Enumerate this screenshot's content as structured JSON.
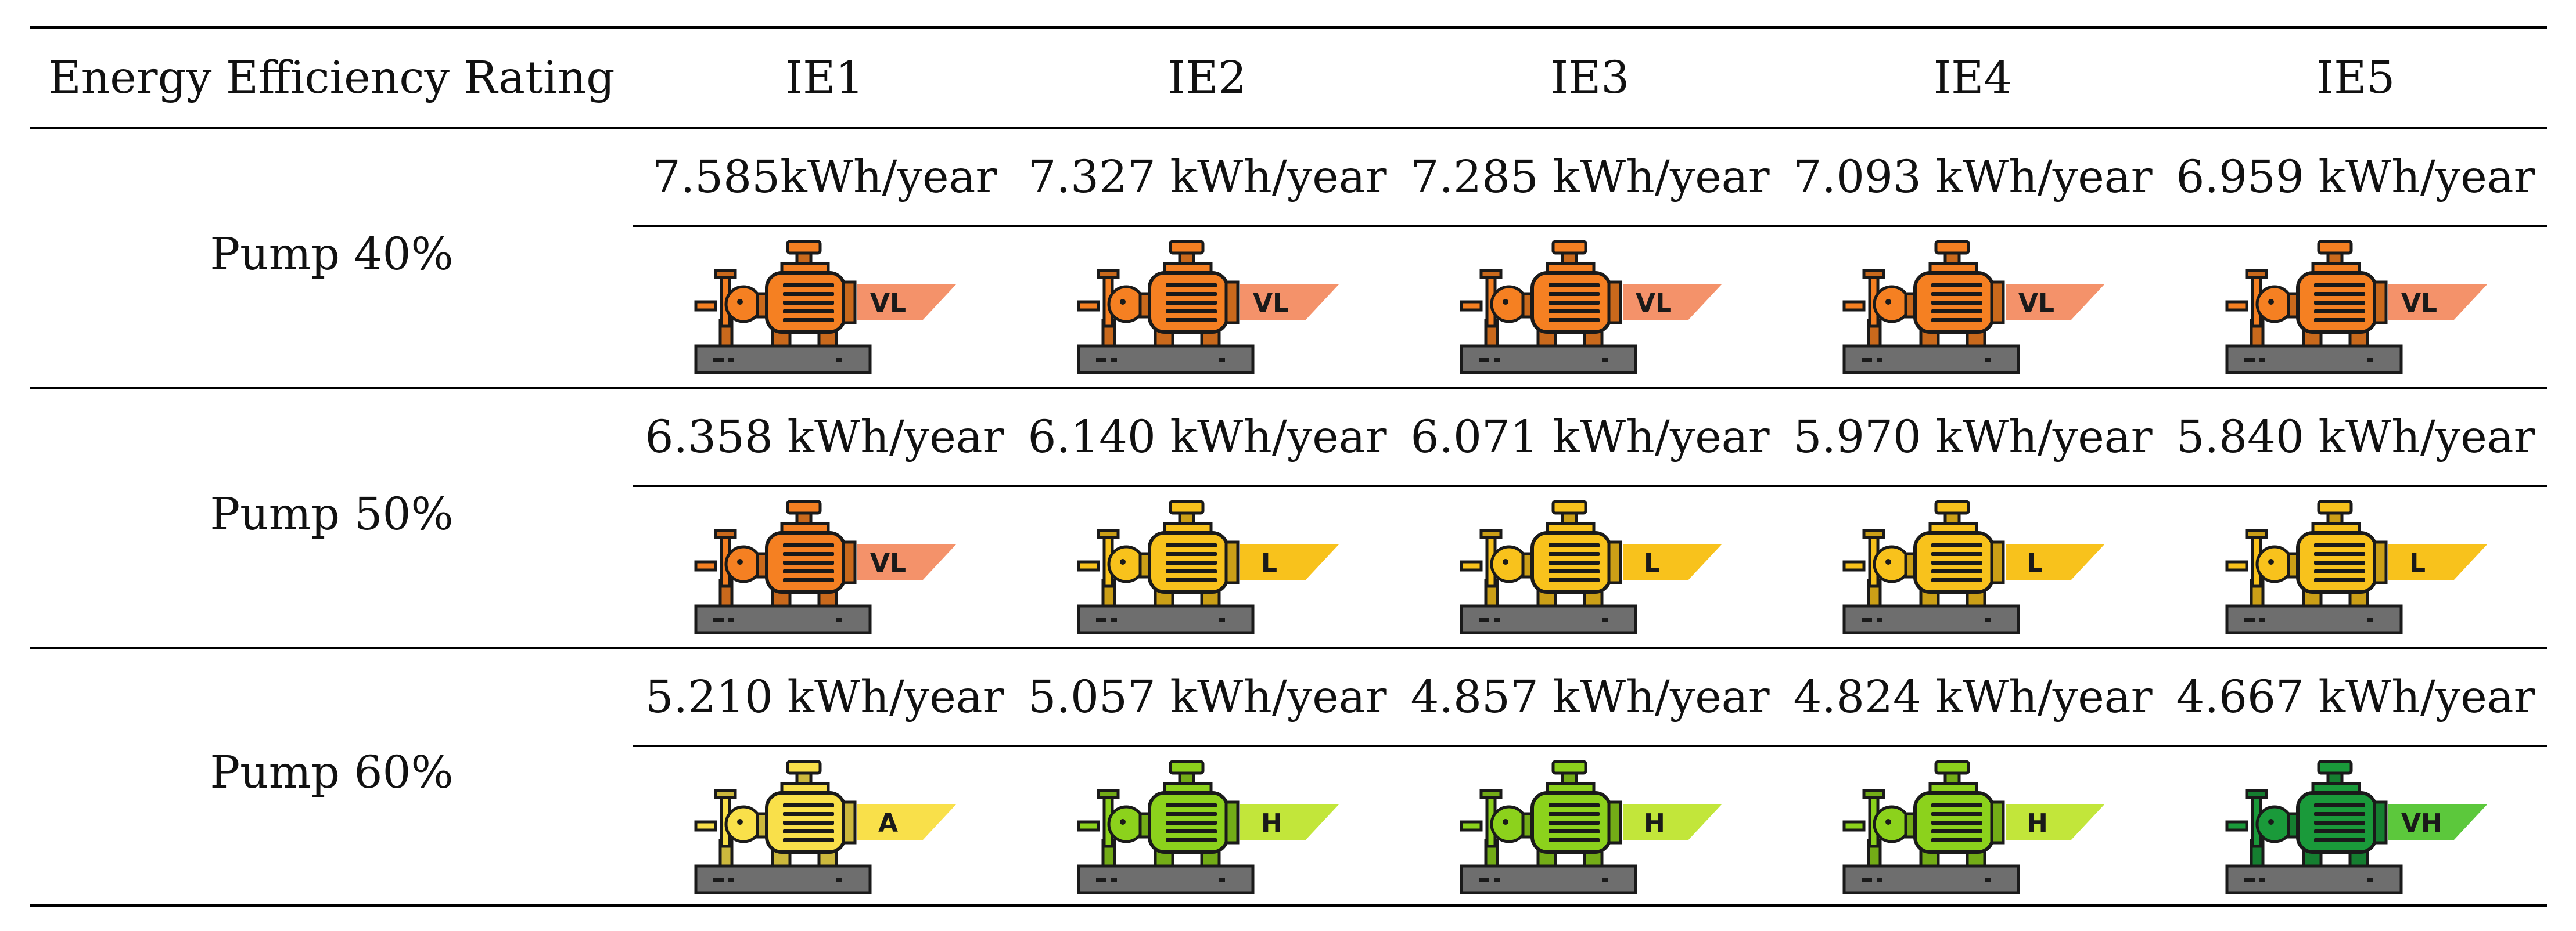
{
  "table": {
    "header": {
      "rating_label": "Energy Efficiency Rating",
      "columns": [
        "IE1",
        "IE2",
        "IE3",
        "IE4",
        "IE5"
      ]
    },
    "rows": [
      {
        "label": "Pump 40%",
        "values": [
          "7.585kWh/year",
          "7.327 kWh/year",
          "7.285 kWh/year",
          "7.093 kWh/year",
          "6.959 kWh/year"
        ],
        "ratings": [
          {
            "badge": "VL",
            "color": "#f58022",
            "badge_color": "#f4926a"
          },
          {
            "badge": "VL",
            "color": "#f58022",
            "badge_color": "#f4926a"
          },
          {
            "badge": "VL",
            "color": "#f58022",
            "badge_color": "#f4926a"
          },
          {
            "badge": "VL",
            "color": "#f58022",
            "badge_color": "#f4926a"
          },
          {
            "badge": "VL",
            "color": "#f58022",
            "badge_color": "#f4926a"
          }
        ]
      },
      {
        "label": "Pump 50%",
        "values": [
          "6.358 kWh/year",
          "6.140 kWh/year",
          "6.071 kWh/year",
          "5.970 kWh/year",
          "5.840 kWh/year"
        ],
        "ratings": [
          {
            "badge": "VL",
            "color": "#f58022",
            "badge_color": "#f4926a"
          },
          {
            "badge": "L",
            "color": "#f8c21c",
            "badge_color": "#f8c21c"
          },
          {
            "badge": "L",
            "color": "#f8c21c",
            "badge_color": "#f8c21c"
          },
          {
            "badge": "L",
            "color": "#f8c21c",
            "badge_color": "#f8c21c"
          },
          {
            "badge": "L",
            "color": "#f8c21c",
            "badge_color": "#f8c21c"
          }
        ]
      },
      {
        "label": "Pump 60%",
        "values": [
          "5.210 kWh/year",
          "5.057 kWh/year",
          "4.857 kWh/year",
          "4.824 kWh/year",
          "4.667 kWh/year"
        ],
        "ratings": [
          {
            "badge": "A",
            "color": "#f9e04a",
            "badge_color": "#f9e04a"
          },
          {
            "badge": "H",
            "color": "#8cd21c",
            "badge_color": "#c2e63a"
          },
          {
            "badge": "H",
            "color": "#8cd21c",
            "badge_color": "#c2e63a"
          },
          {
            "badge": "H",
            "color": "#8cd21c",
            "badge_color": "#c2e63a"
          },
          {
            "badge": "VH",
            "color": "#1a9a3a",
            "badge_color": "#5cc83c"
          }
        ]
      }
    ],
    "icon_name": "pump-motor-icon",
    "base_color": "#6e6e6e"
  }
}
